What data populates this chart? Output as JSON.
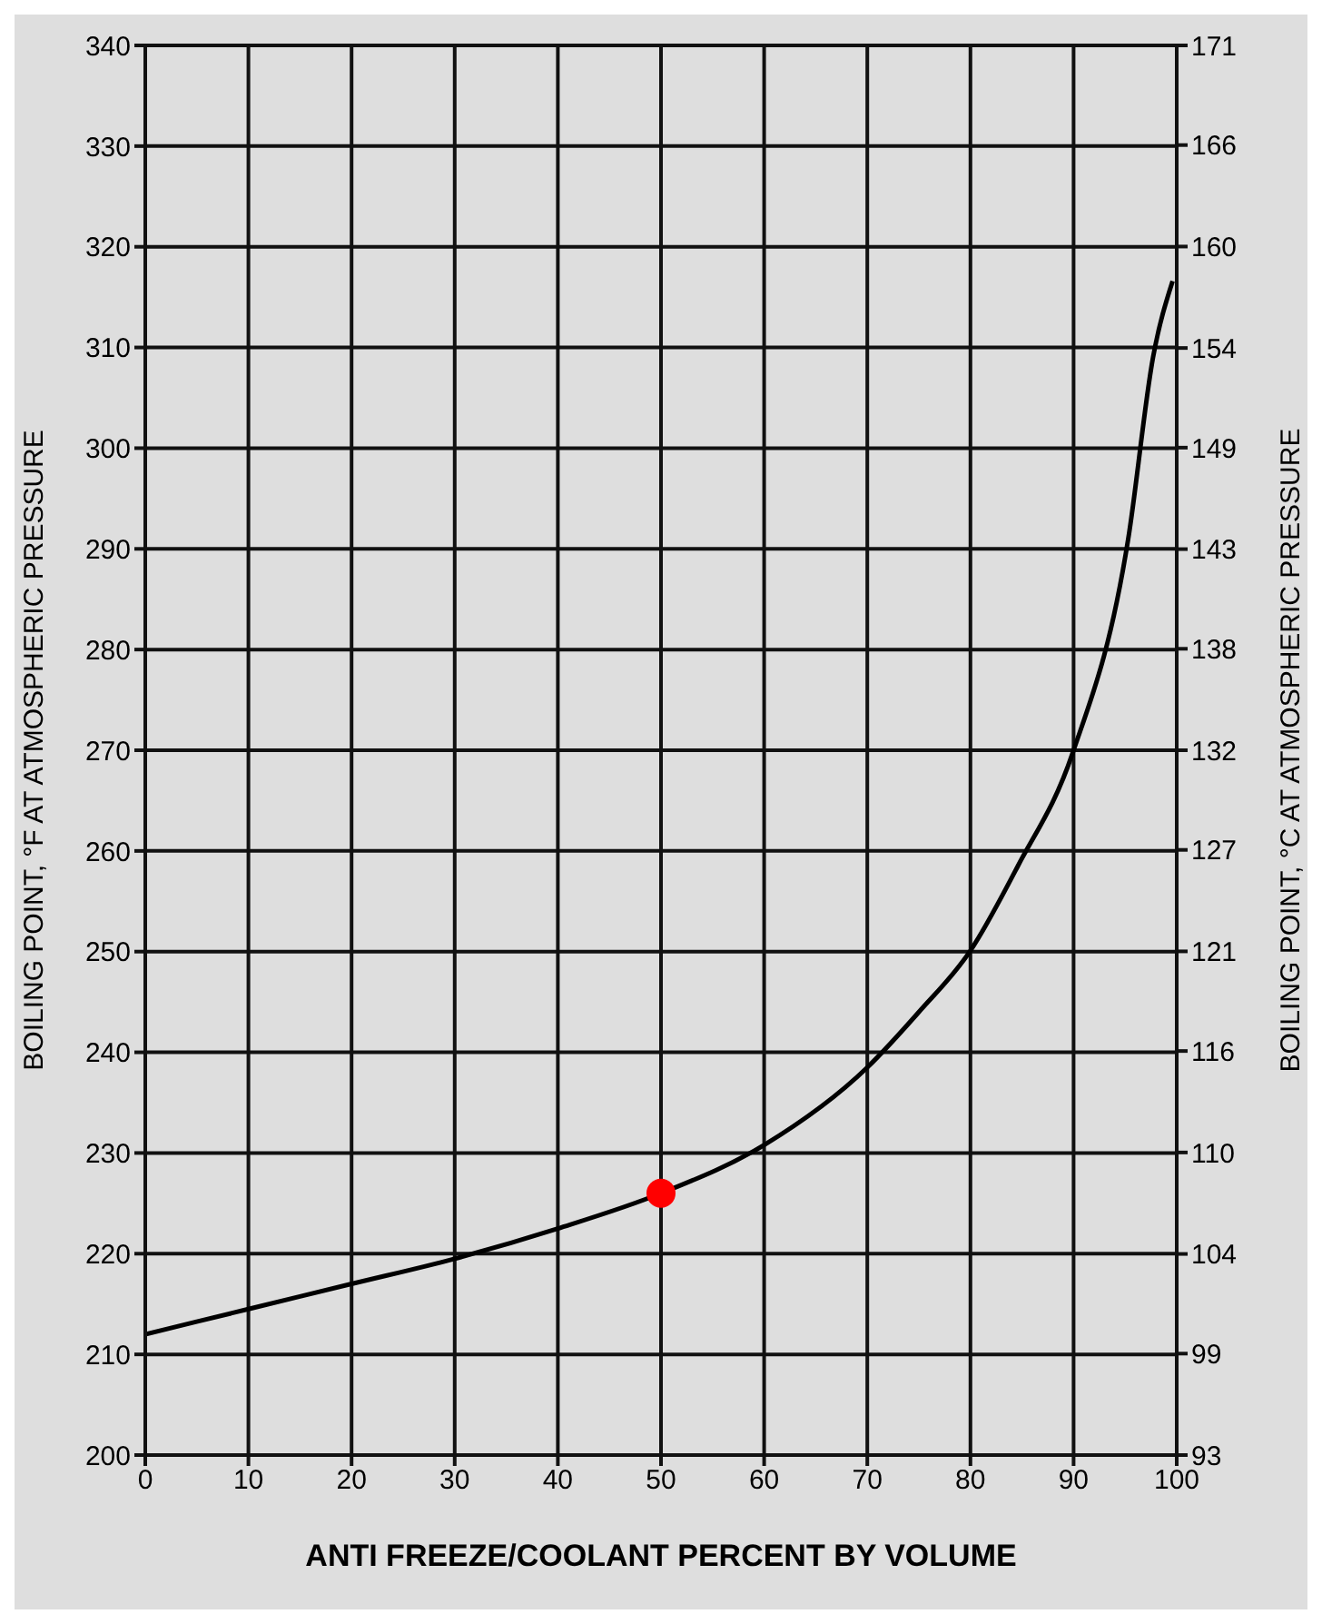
{
  "chart_data": {
    "type": "line",
    "xlabel": "ANTI FREEZE/COOLANT PERCENT BY VOLUME",
    "ylabel": "BOILING POINT, °F AT ATMOSPHERIC PRESSURE",
    "y2label": "BOILING POINT, °C AT ATMOSPHERIC PRESSURE",
    "series": [
      {
        "color": "#000000",
        "x": [
          0,
          10,
          20,
          30,
          40,
          50,
          60,
          70,
          75,
          80,
          84.6,
          89.9,
          95.3,
          97.7,
          99.6
        ],
        "values": [
          212,
          214.5,
          217,
          219.5,
          222.5,
          226,
          230.8,
          238.5,
          244,
          250.1,
          258.5,
          269.7,
          291,
          309,
          316.6
        ]
      },
      {
        "type": "scatter",
        "color": "#ff0000",
        "marker": "circle",
        "x": [
          50
        ],
        "values": [
          226
        ]
      }
    ],
    "xlim": [
      0,
      100
    ],
    "xticks": [
      0,
      10,
      20,
      30,
      40,
      50,
      60,
      70,
      80,
      90,
      100
    ],
    "ylim": [
      200,
      340
    ],
    "yticks": [
      200,
      210,
      220,
      230,
      240,
      250,
      260,
      270,
      280,
      290,
      300,
      310,
      320,
      330,
      340
    ],
    "y2lim": [
      93.3,
      171.1
    ],
    "y2ticks": [
      {
        "value": 93.3,
        "label": "93"
      },
      {
        "value": 98.9,
        "label": "99"
      },
      {
        "value": 104.4,
        "label": "104"
      },
      {
        "value": 110,
        "label": "110"
      },
      {
        "value": 115.6,
        "label": "116"
      },
      {
        "value": 121.1,
        "label": "121"
      },
      {
        "value": 126.7,
        "label": "127"
      },
      {
        "value": 132.2,
        "label": "132"
      },
      {
        "value": 137.8,
        "label": "138"
      },
      {
        "value": 143.3,
        "label": "143"
      },
      {
        "value": 148.9,
        "label": "149"
      },
      {
        "value": 154.4,
        "label": "154"
      },
      {
        "value": 160,
        "label": "160"
      },
      {
        "value": 165.6,
        "label": "166"
      },
      {
        "value": 171.1,
        "label": "171"
      }
    ],
    "grid": true,
    "marker": "none",
    "line_style": "solid"
  }
}
